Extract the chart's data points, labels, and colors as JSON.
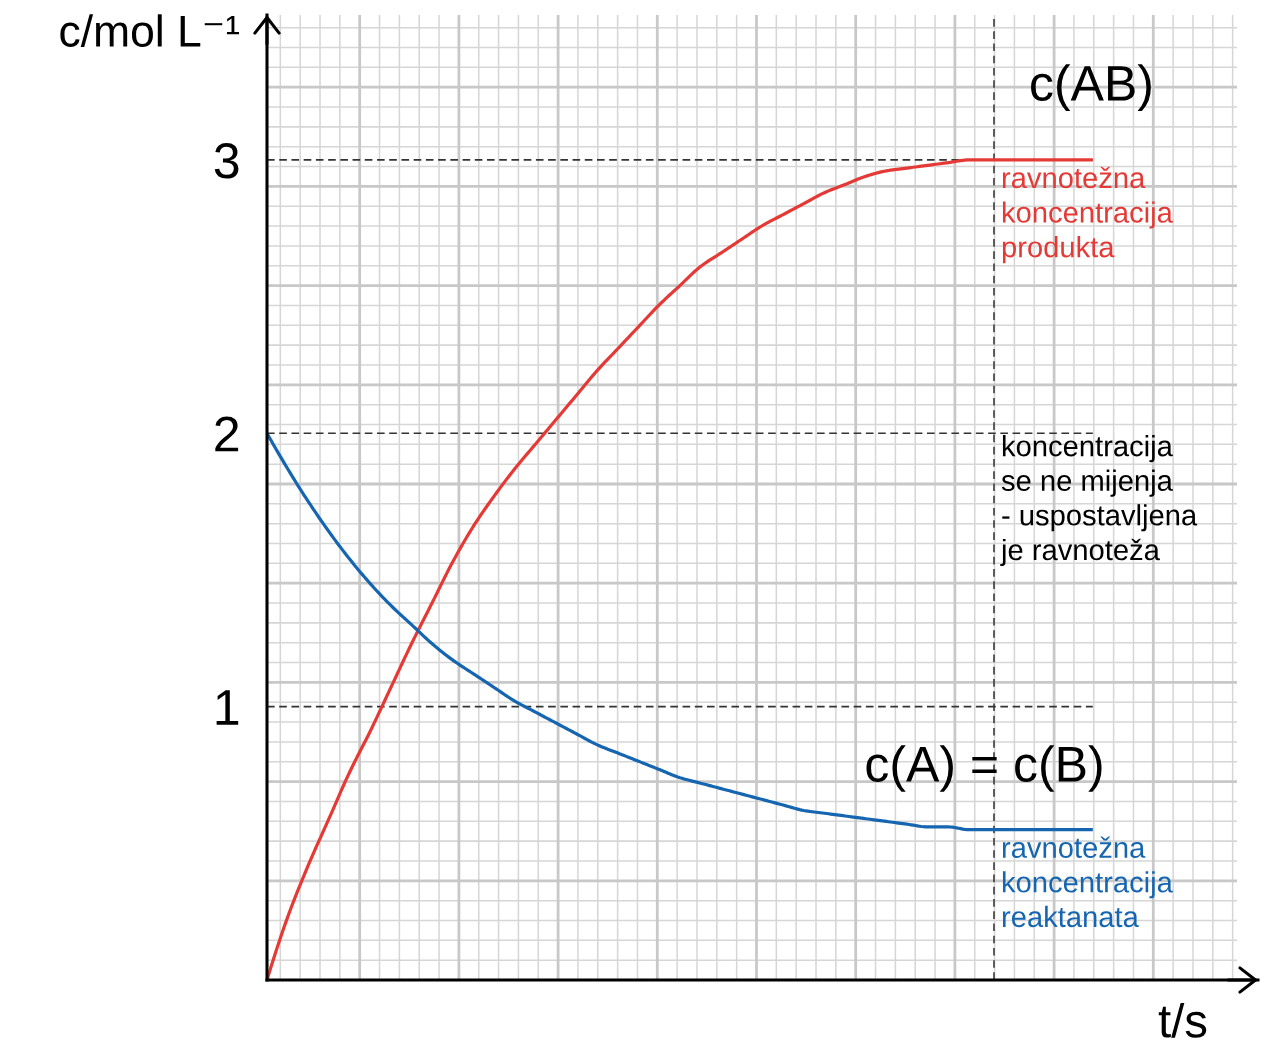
{
  "chart_data": {
    "type": "line",
    "xlabel": "t/s",
    "ylabel": "c/mol L⁻¹",
    "categories": [
      null,
      null,
      null,
      null,
      null,
      null,
      null,
      null,
      null,
      null,
      null,
      null,
      null,
      null,
      null,
      null,
      null,
      null,
      null,
      null,
      null,
      null,
      null,
      null,
      null,
      null,
      null,
      null,
      null,
      null,
      null,
      null,
      null,
      null,
      null,
      null,
      null,
      null,
      null,
      null,
      null
    ],
    "series": [
      {
        "name": "c(AB)",
        "color": "#e53935",
        "values": [
          0,
          0.23,
          0.42,
          0.59,
          0.76,
          0.91,
          1.07,
          1.23,
          1.38,
          1.53,
          1.66,
          1.77,
          1.87,
          1.96,
          2.05,
          2.14,
          2.23,
          2.31,
          2.39,
          2.47,
          2.54,
          2.61,
          2.66,
          2.71,
          2.76,
          2.8,
          2.84,
          2.88,
          2.91,
          2.94,
          2.96,
          2.97,
          2.98,
          2.99,
          3,
          3,
          3,
          3,
          3,
          3,
          3
        ]
      },
      {
        "name": "c(A) = c(B)",
        "color": "#1565b0",
        "values": [
          2,
          1.87,
          1.75,
          1.64,
          1.54,
          1.45,
          1.37,
          1.3,
          1.23,
          1.17,
          1.12,
          1.07,
          1.02,
          0.98,
          0.94,
          0.9,
          0.86,
          0.83,
          0.8,
          0.77,
          0.74,
          0.72,
          0.7,
          0.68,
          0.66,
          0.64,
          0.62,
          0.61,
          0.6,
          0.59,
          0.58,
          0.57,
          0.56,
          0.56,
          0.55,
          0.55,
          0.55,
          0.55,
          0.55,
          0.55,
          0.55
        ]
      }
    ],
    "ylim": [
      0,
      3.53
    ],
    "yticks": [
      1,
      2,
      3
    ],
    "grid": true,
    "ref_lines": [
      {
        "axis": "y",
        "value": 1,
        "color": "#333333",
        "line_style": "dashed"
      },
      {
        "axis": "y",
        "value": 2,
        "color": "#333333",
        "line_style": "dashed"
      },
      {
        "axis": "y",
        "value": 3,
        "color": "#333333",
        "line_style": "dashed"
      }
    ],
    "annotations": [
      {
        "text": "ravnotežna\nkoncentracija\nprodukta",
        "y": 3
      },
      "koncentracija\nse ne mijenja\n- uspostavljena\nje ravnoteža",
      {
        "text": "ravnotežna\nkoncentracija\nreaktanata",
        "y": 0.55
      }
    ]
  }
}
